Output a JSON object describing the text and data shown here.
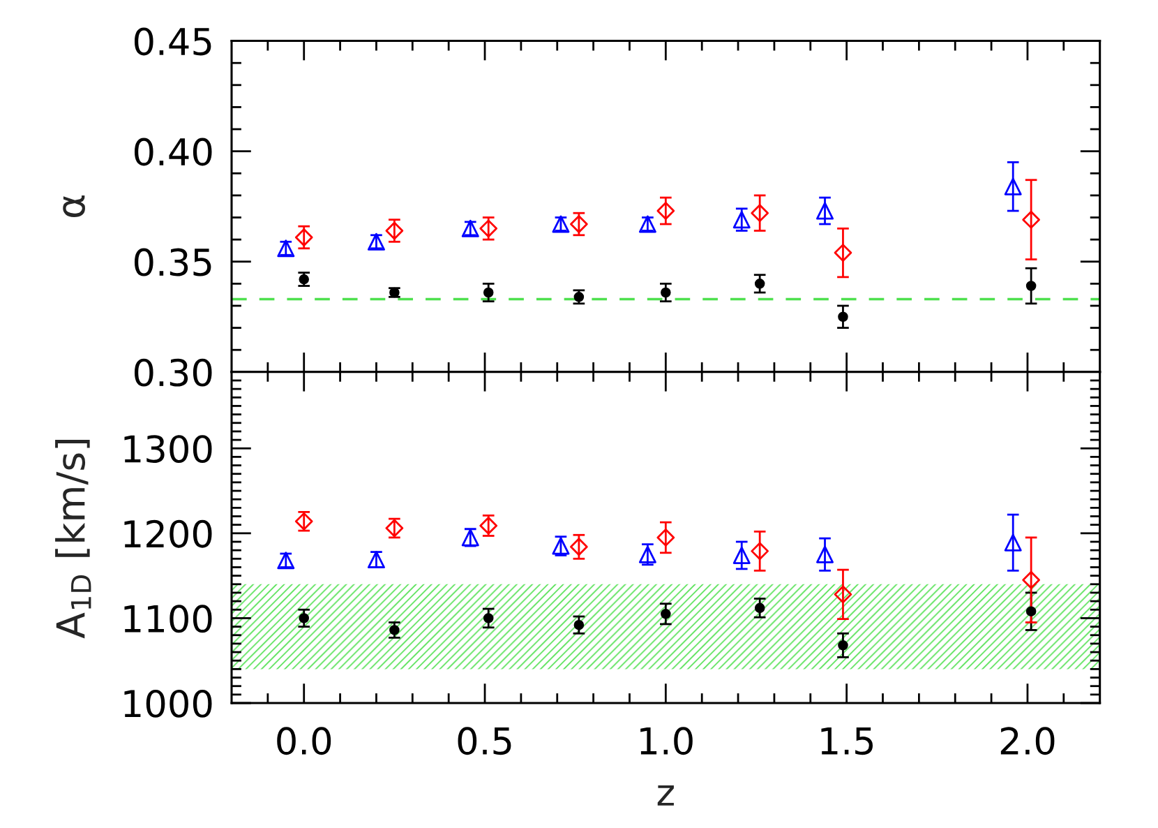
{
  "chart_data": [
    {
      "type": "scatter",
      "ylabel": "α",
      "xlim": [
        -0.2,
        2.2
      ],
      "ylim": [
        0.3,
        0.45
      ],
      "tick_labels": "y",
      "xticks": [
        {
          "value": -0.1,
          "label": null
        },
        0,
        {
          "value": 0.1,
          "label": null
        },
        {
          "value": 0.2,
          "label": null
        },
        {
          "value": 0.3,
          "label": null
        },
        {
          "value": 0.4,
          "label": null
        },
        0.5,
        {
          "value": 0.6,
          "label": null
        },
        {
          "value": 0.7,
          "label": null
        },
        {
          "value": 0.8,
          "label": null
        },
        {
          "value": 0.9,
          "label": null
        },
        1.0,
        {
          "value": 1.1,
          "label": null
        },
        {
          "value": 1.2,
          "label": null
        },
        {
          "value": 1.3,
          "label": null
        },
        {
          "value": 1.4,
          "label": null
        },
        1.5,
        {
          "value": 1.6,
          "label": null
        },
        {
          "value": 1.7,
          "label": null
        },
        {
          "value": 1.8,
          "label": null
        },
        {
          "value": 1.9,
          "label": null
        },
        2.0,
        {
          "value": 2.1,
          "label": null
        }
      ],
      "yticks": [
        {
          "value": 0.3,
          "label": "0.30"
        },
        {
          "value": 0.31,
          "label": null
        },
        {
          "value": 0.32,
          "label": null
        },
        {
          "value": 0.33,
          "label": null
        },
        {
          "value": 0.34,
          "label": null
        },
        {
          "value": 0.35,
          "label": "0.35"
        },
        {
          "value": 0.36,
          "label": null
        },
        {
          "value": 0.37,
          "label": null
        },
        {
          "value": 0.38,
          "label": null
        },
        {
          "value": 0.39,
          "label": null
        },
        {
          "value": 0.4,
          "label": "0.40"
        },
        {
          "value": 0.41,
          "label": null
        },
        {
          "value": 0.42,
          "label": null
        },
        {
          "value": 0.43,
          "label": null
        },
        {
          "value": 0.44,
          "label": null
        },
        {
          "value": 0.45,
          "label": "0.45"
        }
      ],
      "ref_lines": [
        {
          "axis": "y",
          "value": 0.333,
          "color": "#4ee04e",
          "line_style": "dashed"
        }
      ],
      "series": [
        {
          "color": "#000000",
          "marker": "circle",
          "x": [
            0.0,
            0.25,
            0.51,
            0.76,
            1.0,
            1.26,
            1.49,
            2.01
          ],
          "values": [
            0.342,
            0.336,
            0.336,
            0.334,
            0.336,
            0.34,
            0.325,
            0.339
          ],
          "errors": [
            0.003,
            0.002,
            0.004,
            0.003,
            0.004,
            0.004,
            0.005,
            0.008
          ]
        },
        {
          "color": "#ff0000",
          "marker": "diamond",
          "x": [
            0.0,
            0.25,
            0.51,
            0.76,
            1.0,
            1.26,
            1.49,
            2.01
          ],
          "values": [
            0.361,
            0.364,
            0.365,
            0.367,
            0.373,
            0.372,
            0.354,
            0.369
          ],
          "errors": [
            0.005,
            0.005,
            0.005,
            0.005,
            0.006,
            0.008,
            0.011,
            0.018
          ]
        },
        {
          "color": "#0000ff",
          "marker": "triangle",
          "x": [
            -0.05,
            0.2,
            0.46,
            0.71,
            0.95,
            1.21,
            1.44,
            1.96
          ],
          "values": [
            0.356,
            0.359,
            0.365,
            0.367,
            0.367,
            0.369,
            0.373,
            0.384
          ],
          "errors": [
            0.003,
            0.003,
            0.003,
            0.003,
            0.003,
            0.005,
            0.006,
            0.011
          ]
        }
      ]
    },
    {
      "type": "scatter",
      "xlabel": "z",
      "ylabel": "A$_{1D}$ [km/s]",
      "xlim": [
        -0.2,
        2.2
      ],
      "ylim": [
        1000,
        1390
      ],
      "xticks": [
        {
          "value": -0.1,
          "label": null
        },
        {
          "value": 0,
          "label": "0.0"
        },
        {
          "value": 0.1,
          "label": null
        },
        {
          "value": 0.2,
          "label": null
        },
        {
          "value": 0.3,
          "label": null
        },
        {
          "value": 0.4,
          "label": null
        },
        {
          "value": 0.5,
          "label": "0.5"
        },
        {
          "value": 0.6,
          "label": null
        },
        {
          "value": 0.7,
          "label": null
        },
        {
          "value": 0.8,
          "label": null
        },
        {
          "value": 0.9,
          "label": null
        },
        {
          "value": 1.0,
          "label": "1.0"
        },
        {
          "value": 1.1,
          "label": null
        },
        {
          "value": 1.2,
          "label": null
        },
        {
          "value": 1.3,
          "label": null
        },
        {
          "value": 1.4,
          "label": null
        },
        {
          "value": 1.5,
          "label": "1.5"
        },
        {
          "value": 1.6,
          "label": null
        },
        {
          "value": 1.7,
          "label": null
        },
        {
          "value": 1.8,
          "label": null
        },
        {
          "value": 1.9,
          "label": null
        },
        {
          "value": 2.0,
          "label": "2.0"
        },
        {
          "value": 2.1,
          "label": null
        }
      ],
      "yticks": [
        1000,
        {
          "value": 1010,
          "label": null
        },
        {
          "value": 1020,
          "label": null
        },
        {
          "value": 1030,
          "label": null
        },
        {
          "value": 1040,
          "label": null
        },
        {
          "value": 1050,
          "label": null
        },
        {
          "value": 1060,
          "label": null
        },
        {
          "value": 1070,
          "label": null
        },
        {
          "value": 1080,
          "label": null
        },
        {
          "value": 1090,
          "label": null
        },
        1100,
        {
          "value": 1110,
          "label": null
        },
        {
          "value": 1120,
          "label": null
        },
        {
          "value": 1130,
          "label": null
        },
        {
          "value": 1140,
          "label": null
        },
        {
          "value": 1150,
          "label": null
        },
        {
          "value": 1160,
          "label": null
        },
        {
          "value": 1170,
          "label": null
        },
        {
          "value": 1180,
          "label": null
        },
        {
          "value": 1190,
          "label": null
        },
        1200,
        {
          "value": 1210,
          "label": null
        },
        {
          "value": 1220,
          "label": null
        },
        {
          "value": 1230,
          "label": null
        },
        {
          "value": 1240,
          "label": null
        },
        {
          "value": 1250,
          "label": null
        },
        {
          "value": 1260,
          "label": null
        },
        {
          "value": 1270,
          "label": null
        },
        {
          "value": 1280,
          "label": null
        },
        {
          "value": 1290,
          "label": null
        },
        1300,
        {
          "value": 1310,
          "label": null
        },
        {
          "value": 1320,
          "label": null
        },
        {
          "value": 1330,
          "label": null
        },
        {
          "value": 1340,
          "label": null
        },
        {
          "value": 1350,
          "label": null
        },
        {
          "value": 1360,
          "label": null
        },
        {
          "value": 1370,
          "label": null
        },
        {
          "value": 1380,
          "label": null
        }
      ],
      "bands": [
        {
          "axis": "y",
          "from": 1040,
          "to": 1140,
          "color": "#4ee04e"
        }
      ],
      "series": [
        {
          "color": "#000000",
          "marker": "circle",
          "x": [
            0.0,
            0.25,
            0.51,
            0.76,
            1.0,
            1.26,
            1.49,
            2.01
          ],
          "values": [
            1100,
            1086,
            1100,
            1092,
            1105,
            1112,
            1068,
            1108
          ],
          "errors": [
            10,
            9,
            11,
            10,
            12,
            11,
            14,
            22
          ]
        },
        {
          "color": "#ff0000",
          "marker": "diamond",
          "x": [
            0.0,
            0.25,
            0.51,
            0.76,
            1.0,
            1.26,
            1.49,
            2.01
          ],
          "values": [
            1214,
            1206,
            1209,
            1184,
            1195,
            1179,
            1128,
            1145
          ],
          "errors": [
            11,
            11,
            12,
            14,
            18,
            23,
            29,
            50
          ]
        },
        {
          "color": "#0000ff",
          "marker": "triangle",
          "x": [
            -0.05,
            0.2,
            0.46,
            0.71,
            0.95,
            1.21,
            1.44,
            1.96
          ],
          "values": [
            1168,
            1169,
            1195,
            1185,
            1175,
            1174,
            1175,
            1189
          ],
          "errors": [
            8,
            9,
            10,
            11,
            12,
            16,
            19,
            33
          ]
        }
      ]
    }
  ]
}
